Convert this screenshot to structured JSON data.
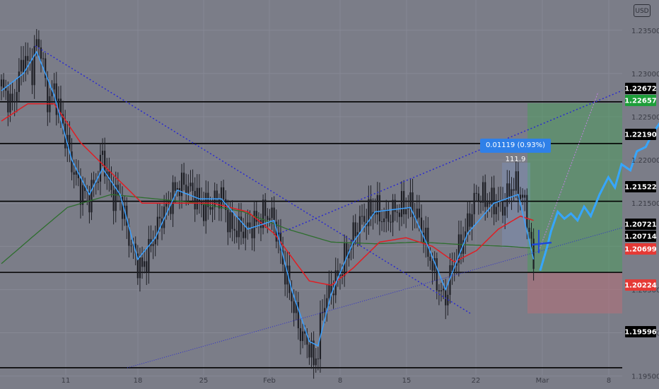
{
  "currency_button": "USD",
  "measure_label": "0.01119 (0.93%) 111.9",
  "colors": {
    "background": "#7b7d88",
    "grid": "#868894",
    "candle": "#1e1f25",
    "ema_fast": "#3aa0ff",
    "ma_red": "#e01e24",
    "ma_green": "#2e6e2e",
    "trend": "#2a2ad0",
    "level": "#000000",
    "long_profit": "#4f9a5f",
    "long_loss": "#b0707a",
    "price_green": "#1e9e3a",
    "price_red": "#e53935",
    "tag_black": "#000000",
    "projection": "#36a6ff",
    "measure": "#2f80e8"
  },
  "chart_data": {
    "type": "candlestick",
    "symbol_currency": "USD",
    "x_tick_labels": [
      "11",
      "18",
      "25",
      "Feb",
      "8",
      "15",
      "22",
      "Mar",
      "8"
    ],
    "y_tick_labels": [
      "1.23500",
      "1.23000",
      "1.22500",
      "1.22000",
      "1.21500",
      "1.20500",
      "1.20000",
      "1.19500"
    ],
    "ylim": [
      1.1935,
      1.2385
    ],
    "horizontal_levels": [
      1.22672,
      1.2219,
      1.21522,
      1.20699,
      1.19596
    ],
    "price_tags": [
      {
        "label": "1.22672",
        "style": "black"
      },
      {
        "label": "1.22657",
        "style": "green"
      },
      {
        "label": "1.22190",
        "style": "black"
      },
      {
        "label": "1.21522",
        "style": "black"
      },
      {
        "label": "1.20721",
        "style": "black"
      },
      {
        "label": "1.20714",
        "style": "black"
      },
      {
        "label": "1.20699",
        "style": "red"
      },
      {
        "label": "1.20224",
        "style": "red"
      },
      {
        "label": "1.19596",
        "style": "black"
      }
    ],
    "long_position": {
      "entry": 1.20699,
      "target": 1.22657,
      "stop": 1.20224
    },
    "measurement": {
      "delta": 0.01119,
      "percent": 0.93,
      "pips": 111.9
    },
    "close_anchors": [
      [
        0,
        1.2285
      ],
      [
        5,
        1.2262
      ],
      [
        10,
        1.2318
      ],
      [
        14,
        1.2305
      ],
      [
        16,
        1.2336
      ],
      [
        18,
        1.2328
      ],
      [
        21,
        1.2268
      ],
      [
        24,
        1.2281
      ],
      [
        28,
        1.224
      ],
      [
        32,
        1.2194
      ],
      [
        36,
        1.2165
      ],
      [
        40,
        1.2157
      ],
      [
        44,
        1.2184
      ],
      [
        46,
        1.2206
      ],
      [
        50,
        1.216
      ],
      [
        54,
        1.2157
      ],
      [
        58,
        1.211
      ],
      [
        62,
        1.208
      ],
      [
        64,
        1.2074
      ],
      [
        68,
        1.21
      ],
      [
        72,
        1.213
      ],
      [
        76,
        1.215
      ],
      [
        80,
        1.2169
      ],
      [
        84,
        1.2172
      ],
      [
        88,
        1.2159
      ],
      [
        92,
        1.2144
      ],
      [
        96,
        1.215
      ],
      [
        100,
        1.216
      ],
      [
        104,
        1.2123
      ],
      [
        108,
        1.2119
      ],
      [
        112,
        1.212
      ],
      [
        116,
        1.2129
      ],
      [
        120,
        1.2139
      ],
      [
        124,
        1.2131
      ],
      [
        128,
        1.208
      ],
      [
        132,
        1.204
      ],
      [
        136,
        1.2
      ],
      [
        140,
        1.1985
      ],
      [
        142,
        1.1965
      ],
      [
        144,
        1.198
      ],
      [
        146,
        1.203
      ],
      [
        150,
        1.205
      ],
      [
        154,
        1.207
      ],
      [
        158,
        1.21
      ],
      [
        162,
        1.2125
      ],
      [
        166,
        1.2135
      ],
      [
        170,
        1.2145
      ],
      [
        174,
        1.213
      ],
      [
        178,
        1.214
      ],
      [
        182,
        1.2145
      ],
      [
        186,
        1.2148
      ],
      [
        190,
        1.213
      ],
      [
        194,
        1.2095
      ],
      [
        198,
        1.206
      ],
      [
        200,
        1.2045
      ],
      [
        202,
        1.204
      ],
      [
        205,
        1.2075
      ],
      [
        208,
        1.2095
      ],
      [
        212,
        1.2125
      ],
      [
        216,
        1.216
      ],
      [
        220,
        1.2155
      ],
      [
        224,
        1.215
      ],
      [
        228,
        1.2145
      ],
      [
        232,
        1.217
      ],
      [
        235,
        1.2168
      ],
      [
        238,
        1.2148
      ],
      [
        240,
        1.212
      ],
      [
        242,
        1.2075
      ]
    ],
    "ema_fast_anchors": [
      [
        0,
        1.228
      ],
      [
        10,
        1.23
      ],
      [
        16,
        1.2325
      ],
      [
        24,
        1.2275
      ],
      [
        32,
        1.22
      ],
      [
        40,
        1.216
      ],
      [
        46,
        1.219
      ],
      [
        54,
        1.216
      ],
      [
        62,
        1.2085
      ],
      [
        70,
        1.211
      ],
      [
        80,
        1.2165
      ],
      [
        90,
        1.2155
      ],
      [
        100,
        1.2155
      ],
      [
        112,
        1.212
      ],
      [
        124,
        1.213
      ],
      [
        132,
        1.205
      ],
      [
        140,
        1.199
      ],
      [
        144,
        1.1985
      ],
      [
        150,
        1.2045
      ],
      [
        160,
        1.2105
      ],
      [
        170,
        1.214
      ],
      [
        186,
        1.2145
      ],
      [
        194,
        1.21
      ],
      [
        202,
        1.205
      ],
      [
        212,
        1.2115
      ],
      [
        224,
        1.215
      ],
      [
        235,
        1.216
      ],
      [
        242,
        1.2085
      ]
    ],
    "ma_red_anchors": [
      [
        0,
        1.2245
      ],
      [
        12,
        1.2265
      ],
      [
        24,
        1.2265
      ],
      [
        36,
        1.222
      ],
      [
        50,
        1.2185
      ],
      [
        64,
        1.215
      ],
      [
        80,
        1.215
      ],
      [
        96,
        1.215
      ],
      [
        112,
        1.214
      ],
      [
        124,
        1.2115
      ],
      [
        140,
        1.206
      ],
      [
        150,
        1.2055
      ],
      [
        160,
        1.2075
      ],
      [
        172,
        1.2105
      ],
      [
        184,
        1.211
      ],
      [
        196,
        1.21
      ],
      [
        206,
        1.2082
      ],
      [
        216,
        1.2095
      ],
      [
        226,
        1.212
      ],
      [
        236,
        1.2135
      ],
      [
        242,
        1.213
      ]
    ],
    "ma_green_anchors": [
      [
        0,
        1.208
      ],
      [
        16,
        1.2115
      ],
      [
        30,
        1.2145
      ],
      [
        50,
        1.216
      ],
      [
        70,
        1.2155
      ],
      [
        90,
        1.215
      ],
      [
        110,
        1.214
      ],
      [
        130,
        1.212
      ],
      [
        150,
        1.2105
      ],
      [
        170,
        1.2103
      ],
      [
        190,
        1.2105
      ],
      [
        210,
        1.2102
      ],
      [
        230,
        1.21
      ],
      [
        242,
        1.2098
      ]
    ],
    "projection_anchors": [
      [
        245,
        1.2072
      ],
      [
        248,
        1.2098
      ],
      [
        250,
        1.2118
      ],
      [
        253,
        1.214
      ],
      [
        256,
        1.2132
      ],
      [
        259,
        1.2138
      ],
      [
        262,
        1.213
      ],
      [
        265,
        1.2146
      ],
      [
        268,
        1.2135
      ],
      [
        272,
        1.216
      ],
      [
        276,
        1.218
      ],
      [
        279,
        1.2168
      ],
      [
        282,
        1.2195
      ],
      [
        286,
        1.2188
      ],
      [
        289,
        1.221
      ],
      [
        293,
        1.2215
      ],
      [
        296,
        1.223
      ],
      [
        300,
        1.2245
      ],
      [
        303,
        1.2244
      ],
      [
        306,
        1.226
      ],
      [
        310,
        1.2262
      ],
      [
        313,
        1.2266
      ]
    ]
  }
}
